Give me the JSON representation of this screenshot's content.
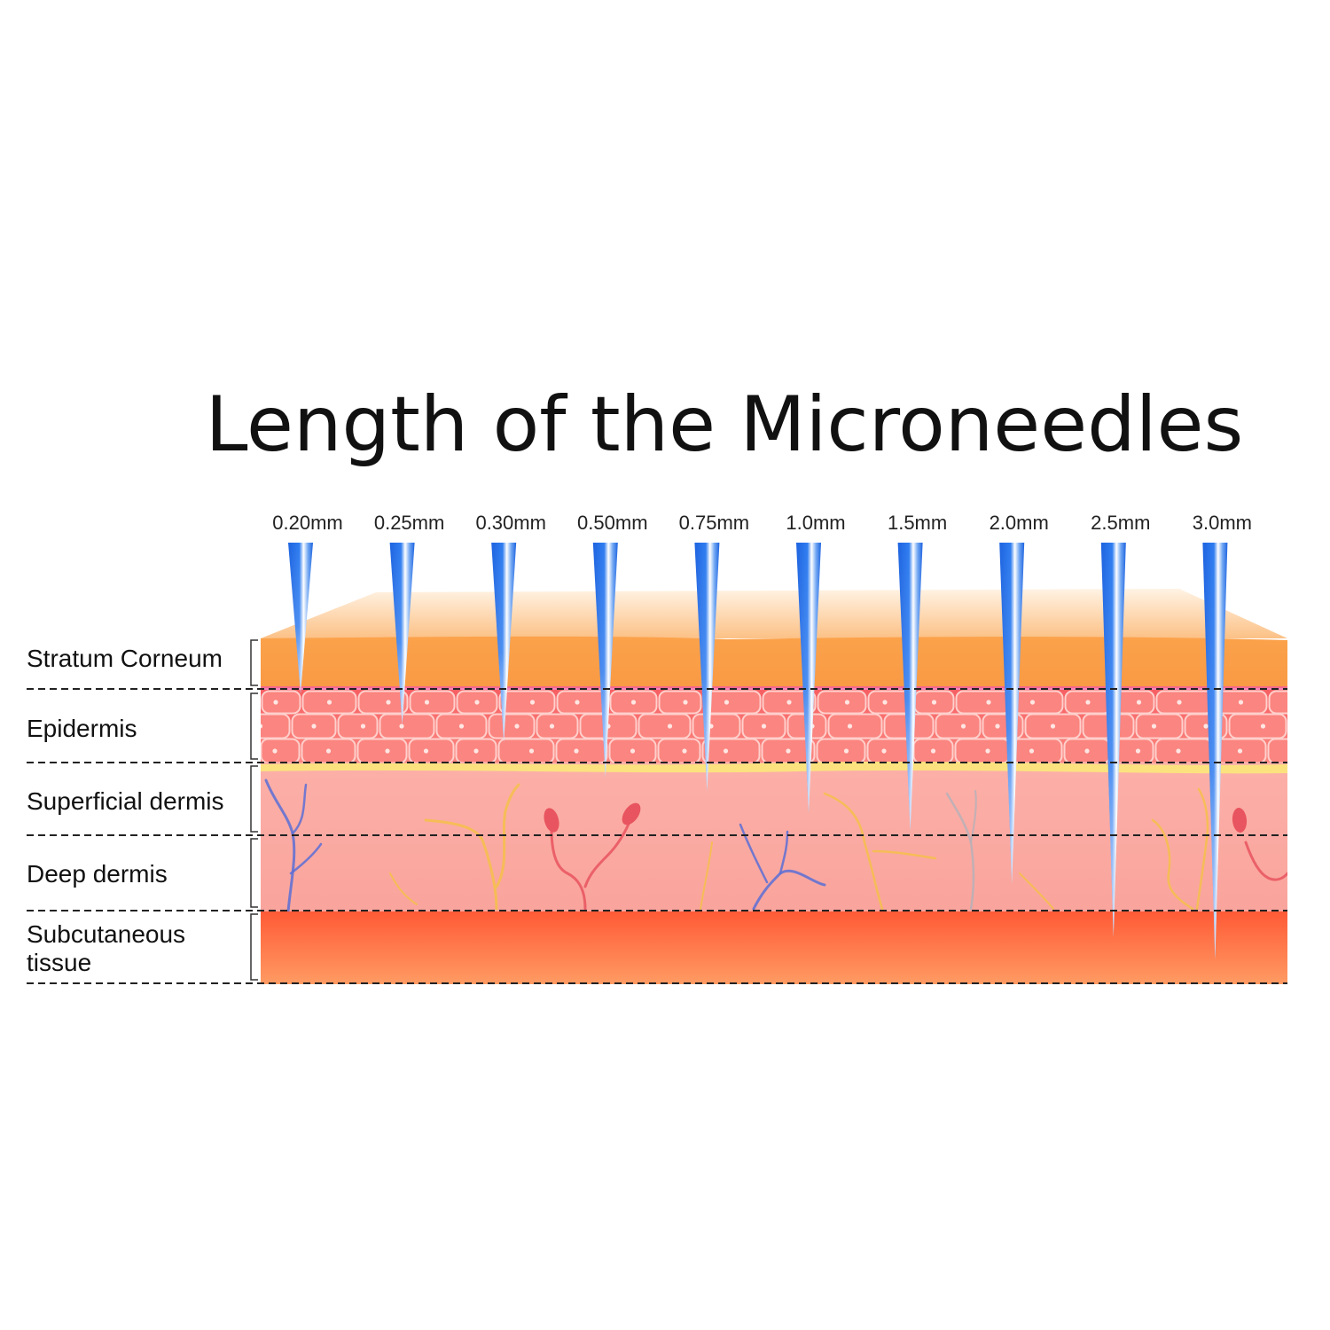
{
  "title": "Length of the Microneedles",
  "needles": [
    {
      "label": "0.20mm",
      "length_mm": 0.2
    },
    {
      "label": "0.25mm",
      "length_mm": 0.25
    },
    {
      "label": "0.30mm",
      "length_mm": 0.3
    },
    {
      "label": "0.50mm",
      "length_mm": 0.5
    },
    {
      "label": "0.75mm",
      "length_mm": 0.75
    },
    {
      "label": "1.0mm",
      "length_mm": 1.0
    },
    {
      "label": "1.5mm",
      "length_mm": 1.5
    },
    {
      "label": "2.0mm",
      "length_mm": 2.0
    },
    {
      "label": "2.5mm",
      "length_mm": 2.5
    },
    {
      "label": "3.0mm",
      "length_mm": 3.0
    }
  ],
  "layers": [
    {
      "name": "stratum-corneum",
      "lines": [
        "Stratum Corneum"
      ],
      "color": "#fba24b"
    },
    {
      "name": "epidermis",
      "lines": [
        "Epidermis"
      ],
      "color": "#f86d6d"
    },
    {
      "name": "superficial-dermis",
      "lines": [
        "Superficial dermis"
      ],
      "color": "#fba9a3"
    },
    {
      "name": "deep-dermis",
      "lines": [
        "Deep dermis"
      ],
      "color": "#fba9a3"
    },
    {
      "name": "subcutaneous-tissue",
      "lines": [
        "Subcutaneous",
        "tissue"
      ],
      "color": "#ff6f46"
    }
  ],
  "colors": {
    "needle": "#1f6fe6",
    "needle_highlight": "#e9f2ff",
    "vein": "#5b6fd6",
    "artery": "#e8545f",
    "nerve": "#f5c04a"
  }
}
